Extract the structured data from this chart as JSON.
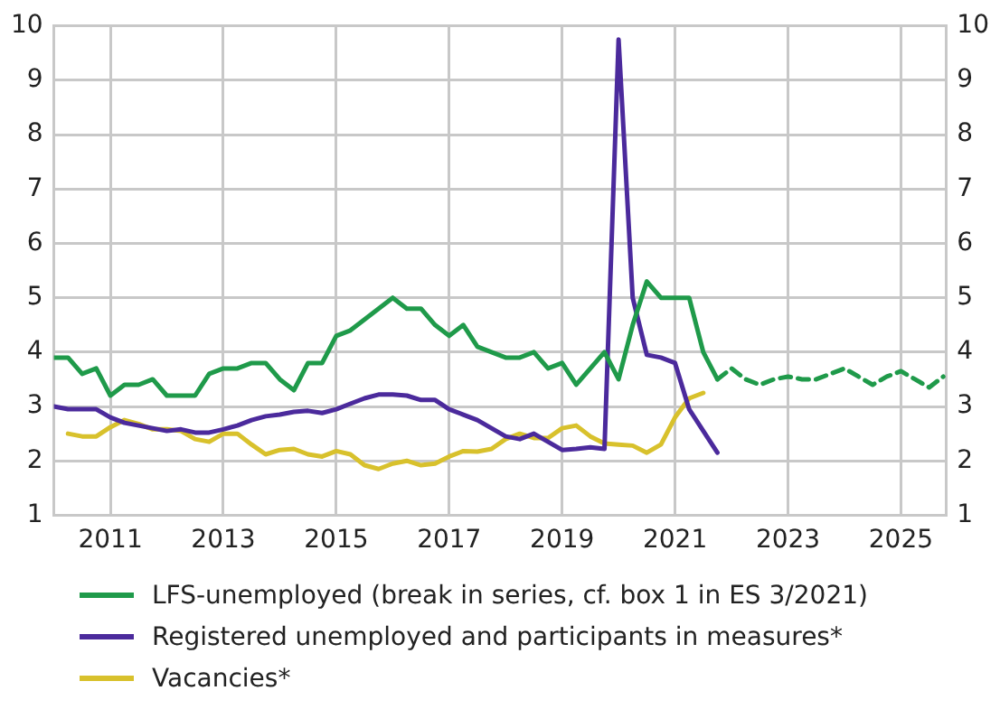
{
  "chart_data": {
    "type": "line",
    "x": [
      2010,
      2010.25,
      2010.5,
      2010.75,
      2011,
      2011.25,
      2011.5,
      2011.75,
      2012,
      2012.25,
      2012.5,
      2012.75,
      2013,
      2013.25,
      2013.5,
      2013.75,
      2014,
      2014.25,
      2014.5,
      2014.75,
      2015,
      2015.25,
      2015.5,
      2015.75,
      2016,
      2016.25,
      2016.5,
      2016.75,
      2017,
      2017.25,
      2017.5,
      2017.75,
      2018,
      2018.25,
      2018.5,
      2018.75,
      2019,
      2019.25,
      2019.5,
      2019.75,
      2020,
      2020.25,
      2020.5,
      2020.75,
      2021,
      2021.25,
      2021.5,
      2021.75
    ],
    "series": [
      {
        "name": "LFS-unemployed (break in series, cf. box 1 in ES 3/2021)",
        "color": "#1f9a4a",
        "values": [
          3.9,
          3.9,
          3.6,
          3.7,
          3.2,
          3.4,
          3.4,
          3.5,
          3.2,
          3.2,
          3.2,
          3.6,
          3.7,
          3.7,
          3.8,
          3.8,
          3.5,
          3.3,
          3.8,
          3.8,
          4.3,
          4.4,
          4.6,
          4.8,
          5.0,
          4.8,
          4.8,
          4.5,
          4.3,
          4.5,
          4.1,
          4.0,
          3.9,
          3.9,
          4.0,
          3.7,
          3.8,
          3.4,
          3.7,
          4.0,
          3.5,
          4.5,
          5.3,
          5.0,
          5.0,
          5.0,
          4.0,
          3.5
        ]
      },
      {
        "color": "#1f9a4a",
        "line_style": "dashed",
        "x": [
          2021.75,
          2022,
          2022.25,
          2022.5,
          2022.75,
          2023,
          2023.25,
          2023.5,
          2023.75,
          2024,
          2024.25,
          2024.5,
          2024.75,
          2025,
          2025.25,
          2025.5,
          2025.75
        ],
        "values": [
          3.5,
          3.7,
          3.5,
          3.4,
          3.5,
          3.55,
          3.5,
          3.5,
          3.6,
          3.7,
          3.55,
          3.4,
          3.55,
          3.65,
          3.5,
          3.35,
          3.55
        ]
      },
      {
        "name": "Registered unemployed and participants in measures*",
        "color": "#4b2a9c",
        "values": [
          3.0,
          2.95,
          2.95,
          2.95,
          2.8,
          2.7,
          2.65,
          2.6,
          2.55,
          2.58,
          2.52,
          2.52,
          2.58,
          2.65,
          2.75,
          2.82,
          2.85,
          2.9,
          2.92,
          2.88,
          2.95,
          3.05,
          3.15,
          3.22,
          3.22,
          3.2,
          3.12,
          3.12,
          2.95,
          2.85,
          2.75,
          2.6,
          2.45,
          2.4,
          2.5,
          2.35,
          2.2,
          2.22,
          2.25,
          2.22,
          9.75,
          5.0,
          3.95,
          3.9,
          3.8,
          2.95,
          2.55,
          2.15
        ]
      },
      {
        "name": "Vacancies*",
        "color": "#d8c12c",
        "values": [
          null,
          2.5,
          2.45,
          2.45,
          2.62,
          2.75,
          2.68,
          2.58,
          2.58,
          2.55,
          2.4,
          2.35,
          2.5,
          2.5,
          2.3,
          2.12,
          2.2,
          2.22,
          2.12,
          2.08,
          2.18,
          2.12,
          1.92,
          1.85,
          1.95,
          2.0,
          1.92,
          1.95,
          2.08,
          2.18,
          2.17,
          2.22,
          2.4,
          2.5,
          2.42,
          2.42,
          2.6,
          2.65,
          2.45,
          2.32,
          2.3,
          2.28,
          2.15,
          2.3,
          2.8,
          3.15,
          3.25,
          null
        ]
      }
    ],
    "xlim": [
      2010,
      2025.8
    ],
    "xticks": [
      2011,
      2013,
      2015,
      2017,
      2019,
      2021,
      2023,
      2025
    ],
    "ylim": [
      1,
      10
    ],
    "yticks": [
      1,
      2,
      3,
      4,
      5,
      6,
      7,
      8,
      9,
      10
    ],
    "y2lim": [
      1,
      10
    ],
    "y2ticks": [
      1,
      2,
      3,
      4,
      5,
      6,
      7,
      8,
      9,
      10
    ],
    "grid": true,
    "legend": "bottom",
    "marker": "none",
    "line_style": "solid"
  }
}
